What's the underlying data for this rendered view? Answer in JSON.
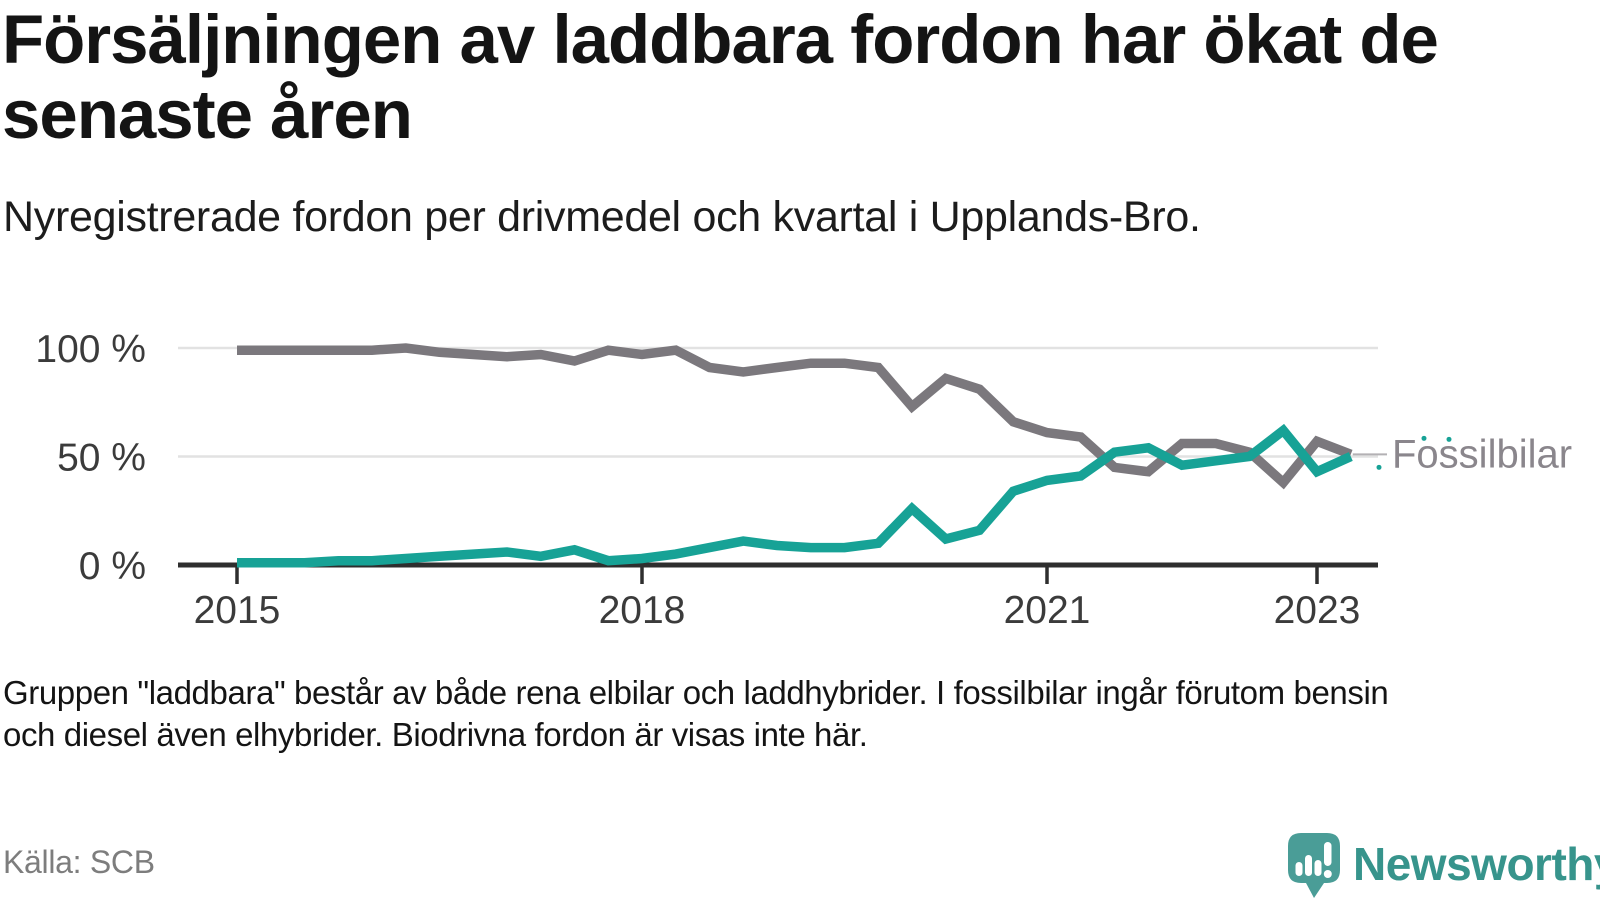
{
  "title": {
    "line1": "Försäljningen av laddbara fordon har ökat de",
    "line2": "senaste åren"
  },
  "subtitle": "Nyregistrerade fordon per drivmedel och kvartal i Upplands-Bro.",
  "footnote": {
    "line1": "Gruppen \"laddbara\" består av både rena elbilar och laddhybrider. I fossilbilar ingår förutom bensin",
    "line2": "och diesel även elhybrider. Biodrivna fordon är visas inte här."
  },
  "source": "Källa: SCB",
  "logo": {
    "text": "Newsworthy",
    "icon": "newsworthy-speech-bubble-bar-chart-icon",
    "icon_color": "#4a9d97",
    "text_color": "#37948c"
  },
  "colors": {
    "fossil_line": "#7b787d",
    "laddbara_line": "#17a296",
    "gridline": "#e2e2e2",
    "axis": "#2e2e2e",
    "tick_label": "#3b3b3b",
    "end_label": "#8a868c",
    "leader_line": "#b3b1b4"
  },
  "chart_data": {
    "type": "line",
    "unit": "%",
    "ylim": [
      0,
      100
    ],
    "grid": "horizontal-only",
    "legend_position": "end-of-line",
    "y_ticks": [
      {
        "value": 100,
        "label": "100 %"
      },
      {
        "value": 50,
        "label": "50 %"
      },
      {
        "value": 0,
        "label": "0 %"
      }
    ],
    "x_ticks": [
      {
        "year": 2015,
        "label": "2015"
      },
      {
        "year": 2018,
        "label": "2018"
      },
      {
        "year": 2021,
        "label": "2021"
      },
      {
        "year": 2023,
        "label": "2023"
      }
    ],
    "quarters": [
      "2015K1",
      "2015K2",
      "2015K3",
      "2015K4",
      "2016K1",
      "2016K2",
      "2016K3",
      "2016K4",
      "2017K1",
      "2017K2",
      "2017K3",
      "2017K4",
      "2018K1",
      "2018K2",
      "2018K3",
      "2018K4",
      "2019K1",
      "2019K2",
      "2019K3",
      "2019K4",
      "2020K1",
      "2020K2",
      "2020K3",
      "2020K4",
      "2021K1",
      "2021K2",
      "2021K3",
      "2021K4",
      "2022K1",
      "2022K2",
      "2022K3",
      "2022K4",
      "2023K1",
      "2023K2"
    ],
    "end_label": {
      "text": "Fossilbilar",
      "color": "#8a868c"
    },
    "series": [
      {
        "name": "Fossilbilar",
        "label_visible": true,
        "color": "#7b787d",
        "values": [
          99,
          99,
          99,
          99,
          99,
          100,
          98,
          97,
          96,
          97,
          94,
          99,
          97,
          99,
          91,
          89,
          91,
          93,
          93,
          91,
          73,
          86,
          81,
          66,
          61,
          59,
          45,
          43,
          56,
          56,
          52,
          38,
          57,
          51
        ]
      },
      {
        "name": "Laddbara",
        "label_visible": false,
        "color": "#17a296",
        "values": [
          1,
          1,
          1,
          2,
          2,
          3,
          4,
          5,
          6,
          4,
          7,
          2,
          3,
          5,
          8,
          11,
          9,
          8,
          8,
          10,
          26,
          12,
          16,
          34,
          39,
          41,
          52,
          54,
          46,
          48,
          50,
          62,
          43,
          50
        ]
      }
    ]
  }
}
